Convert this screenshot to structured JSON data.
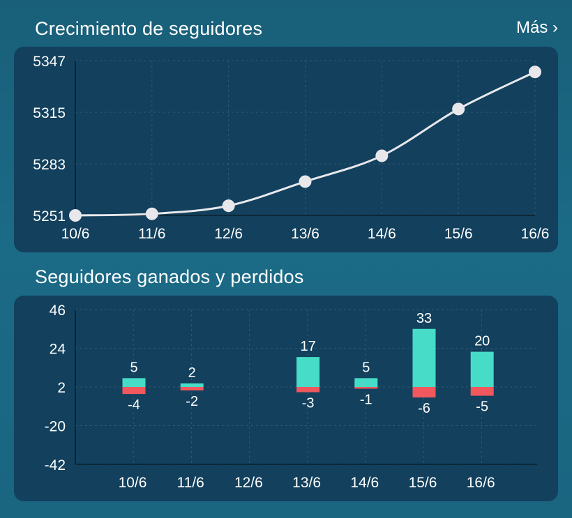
{
  "growth": {
    "title": "Crecimiento de seguidores",
    "more": "Más ›"
  },
  "gainloss": {
    "title": "Seguidores ganados y perdidos"
  },
  "colors": {
    "card": "#12405d",
    "line": "#e8e8ec",
    "gained": "#46dcc8",
    "lost": "#f0585e",
    "grid": "#2c5a77"
  },
  "chart_data": [
    {
      "type": "line",
      "title": "Crecimiento de seguidores",
      "x": [
        "10/6",
        "11/6",
        "12/6",
        "13/6",
        "14/6",
        "15/6",
        "16/6"
      ],
      "y": [
        5251,
        5252,
        5257,
        5272,
        5288,
        5317,
        5340
      ],
      "yticks": [
        5347,
        5315,
        5283,
        5251
      ],
      "ylim": [
        5251,
        5347
      ],
      "grid": true
    },
    {
      "type": "bar",
      "title": "Seguidores ganados y perdidos",
      "categories": [
        "10/6",
        "11/6",
        "12/6",
        "13/6",
        "14/6",
        "15/6",
        "16/6"
      ],
      "series": [
        {
          "values": [
            5,
            2,
            0,
            17,
            5,
            33,
            20
          ]
        },
        {
          "values": [
            -4,
            -2,
            0,
            -3,
            -1,
            -6,
            -5
          ]
        }
      ],
      "labels_gained": [
        "5",
        "2",
        "",
        "17",
        "5",
        "33",
        "20"
      ],
      "labels_lost": [
        "-4",
        "-2",
        "",
        "-3",
        "-1",
        "-6",
        "-5"
      ],
      "yticks": [
        46,
        24,
        2,
        -20,
        -42
      ],
      "ylim": [
        -42,
        46
      ],
      "grid": true
    }
  ]
}
